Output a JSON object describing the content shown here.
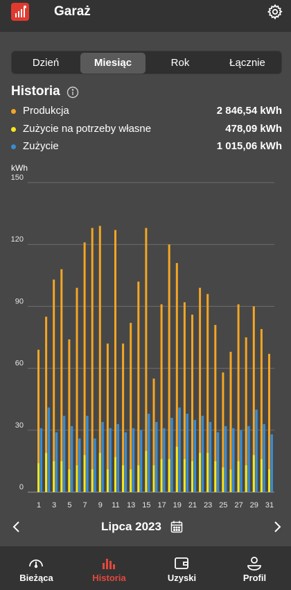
{
  "header": {
    "title": "Garaż"
  },
  "tabs": [
    {
      "label": "Dzień",
      "active": false
    },
    {
      "label": "Miesiąc",
      "active": true
    },
    {
      "label": "Rok",
      "active": false
    },
    {
      "label": "Łącznie",
      "active": false
    }
  ],
  "history": {
    "title": "Historia",
    "legend": [
      {
        "label": "Produkcja",
        "value": "2 846,54 kWh",
        "color": "#f5a623"
      },
      {
        "label": "Zużycie na potrzeby własne",
        "value": "478,09 kWh",
        "color": "#f8e71c"
      },
      {
        "label": "Zużycie",
        "value": "1 015,06 kWh",
        "color": "#3b8bd0"
      }
    ],
    "unit": "kWh"
  },
  "chart_data": {
    "type": "bar",
    "ylabel": "kWh",
    "ylim": [
      0,
      150
    ],
    "yticks": [
      0,
      30,
      60,
      90,
      120,
      150
    ],
    "x": [
      1,
      2,
      3,
      4,
      5,
      6,
      7,
      8,
      9,
      10,
      11,
      12,
      13,
      14,
      15,
      16,
      17,
      18,
      19,
      20,
      21,
      22,
      23,
      24,
      25,
      26,
      27,
      28,
      29,
      30,
      31
    ],
    "xtick_labels": [
      "1",
      "3",
      "5",
      "7",
      "9",
      "11",
      "13",
      "15",
      "17",
      "19",
      "21",
      "23",
      "25",
      "27",
      "29",
      "31"
    ],
    "series": [
      {
        "name": "Produkcja",
        "color": "#f5a623",
        "values": [
          69,
          85,
          103,
          108,
          74,
          99,
          121,
          128,
          129,
          72,
          127,
          72,
          82,
          102,
          128,
          55,
          91,
          120,
          111,
          92,
          86,
          99,
          96,
          81,
          58,
          68,
          91,
          75,
          90,
          79,
          67
        ]
      },
      {
        "name": "Zużycie na potrzeby własne",
        "color": "#f8e71c",
        "values": [
          14,
          19,
          15,
          15,
          11,
          13,
          18,
          11,
          19,
          11,
          17,
          13,
          11,
          13,
          20,
          13,
          16,
          16,
          22,
          16,
          15,
          19,
          19,
          15,
          12,
          11,
          15,
          13,
          18,
          16,
          11
        ]
      },
      {
        "name": "Zużycie",
        "color": "#3b8bd0",
        "values": [
          31,
          41,
          29,
          37,
          32,
          26,
          37,
          26,
          34,
          31,
          33,
          29,
          31,
          30,
          38,
          34,
          31,
          36,
          41,
          38,
          35,
          37,
          34,
          29,
          32,
          31,
          30,
          32,
          40,
          33,
          28
        ]
      }
    ]
  },
  "month_nav": {
    "label": "Lipca 2023",
    "prev_icon": "chevron-left-icon",
    "next_icon": "chevron-right-icon"
  },
  "bottom_nav": [
    {
      "label": "Bieżąca",
      "icon": "gauge-icon",
      "active": false
    },
    {
      "label": "Historia",
      "icon": "bar-chart-icon",
      "active": true
    },
    {
      "label": "Uzyski",
      "icon": "wallet-icon",
      "active": false
    },
    {
      "label": "Profil",
      "icon": "profile-icon",
      "active": false
    }
  ],
  "colors": {
    "accent": "#e5483d",
    "background": "#474747",
    "bar": "#333333"
  }
}
